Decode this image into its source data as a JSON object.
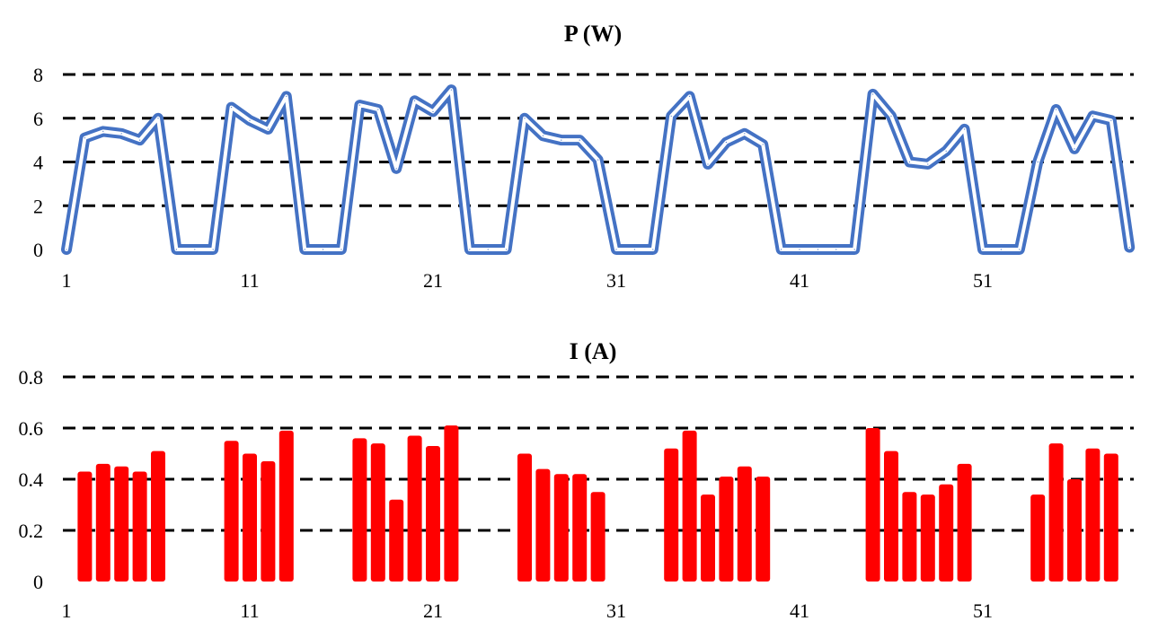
{
  "chart_data": [
    {
      "type": "line",
      "title": "P (W)",
      "ylim": [
        0,
        8
      ],
      "y_ticks": [
        "0",
        "2",
        "4",
        "6",
        "8"
      ],
      "x_tick_labels": [
        "1",
        "11",
        "21",
        "31",
        "41",
        "51"
      ],
      "grid": true,
      "line_color": "#4472C4",
      "x": [
        1,
        2,
        3,
        4,
        5,
        6,
        7,
        8,
        9,
        10,
        11,
        12,
        13,
        14,
        15,
        16,
        17,
        18,
        19,
        20,
        21,
        22,
        23,
        24,
        25,
        26,
        27,
        28,
        29,
        30,
        31,
        32,
        33,
        34,
        35,
        36,
        37,
        38,
        39,
        40,
        41,
        42,
        43,
        44,
        45,
        46,
        47,
        48,
        49,
        50,
        51,
        52,
        53,
        54,
        55,
        56,
        57,
        58,
        59
      ],
      "values": [
        0,
        5.1,
        5.4,
        5.3,
        5.0,
        6.0,
        0,
        0,
        0,
        6.5,
        5.9,
        5.5,
        7.0,
        0,
        0,
        0,
        6.6,
        6.4,
        3.7,
        6.8,
        6.3,
        7.3,
        0,
        0,
        0,
        6.0,
        5.2,
        5.0,
        5.0,
        4.1,
        0,
        0,
        0,
        6.1,
        7.0,
        3.9,
        4.9,
        5.3,
        4.8,
        0,
        0,
        0,
        0,
        0,
        7.1,
        6.1,
        4.0,
        3.9,
        4.5,
        5.5,
        0,
        0,
        0,
        4.0,
        6.4,
        4.6,
        6.1,
        5.9,
        0.1
      ]
    },
    {
      "type": "bar",
      "title": "I (A)",
      "ylim": [
        0,
        0.8
      ],
      "y_ticks": [
        "0",
        "0.2",
        "0.4",
        "0.6",
        "0.8"
      ],
      "x_tick_labels": [
        "1",
        "11",
        "21",
        "31",
        "41",
        "51"
      ],
      "grid": true,
      "bar_color": "#FF0000",
      "x": [
        1,
        2,
        3,
        4,
        5,
        6,
        7,
        8,
        9,
        10,
        11,
        12,
        13,
        14,
        15,
        16,
        17,
        18,
        19,
        20,
        21,
        22,
        23,
        24,
        25,
        26,
        27,
        28,
        29,
        30,
        31,
        32,
        33,
        34,
        35,
        36,
        37,
        38,
        39,
        40,
        41,
        42,
        43,
        44,
        45,
        46,
        47,
        48,
        49,
        50,
        51,
        52,
        53,
        54,
        55,
        56,
        57,
        58,
        59
      ],
      "values": [
        0,
        0.43,
        0.46,
        0.45,
        0.43,
        0.51,
        0,
        0,
        0,
        0.55,
        0.5,
        0.47,
        0.59,
        0,
        0,
        0,
        0.56,
        0.54,
        0.32,
        0.57,
        0.53,
        0.61,
        0,
        0,
        0,
        0.5,
        0.44,
        0.42,
        0.42,
        0.35,
        0,
        0,
        0,
        0.52,
        0.59,
        0.34,
        0.41,
        0.45,
        0.41,
        0,
        0,
        0,
        0,
        0,
        0.6,
        0.51,
        0.35,
        0.34,
        0.38,
        0.46,
        0,
        0,
        0,
        0.34,
        0.54,
        0.4,
        0.52,
        0.5,
        0
      ]
    }
  ]
}
